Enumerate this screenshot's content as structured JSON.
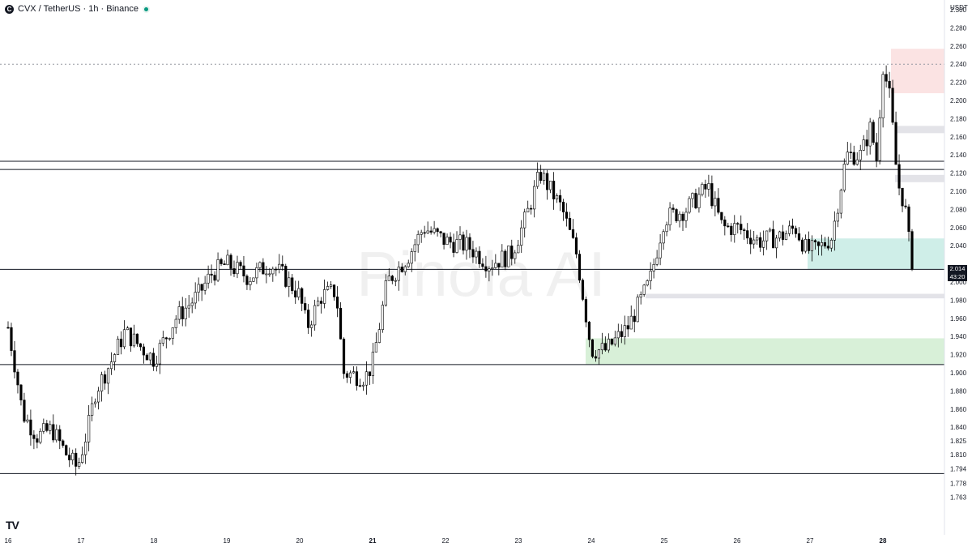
{
  "header": {
    "symbol_icon": "C",
    "title": "CVX / TetherUS · 1h · Binance",
    "status": "market-open-dot"
  },
  "axis": {
    "unit": "USDT",
    "price_ticks": [
      "2.300",
      "2.280",
      "2.260",
      "2.240",
      "2.220",
      "2.200",
      "2.180",
      "2.160",
      "2.140",
      "2.120",
      "2.100",
      "2.080",
      "2.060",
      "2.040",
      "2.020",
      "2.000",
      "1.980",
      "1.960",
      "1.940",
      "1.920",
      "1.900",
      "1.880",
      "1.860",
      "1.840",
      "1.825",
      "1.810",
      "1.794",
      "1.778",
      "1.763"
    ],
    "date_ticks": [
      "16",
      "17",
      "18",
      "19",
      "20",
      "21",
      "22",
      "23",
      "24",
      "25",
      "26",
      "27",
      "28"
    ]
  },
  "price_tag": {
    "price": "2.014",
    "countdown": "43:20"
  },
  "watermark": "Pinola AI",
  "logo": "TV",
  "colors": {
    "up_candle": "#ffffff",
    "down_candle": "#000000",
    "supply_zone": "#fbe3e3",
    "demand_zone_teal": "#cfeee8",
    "demand_zone_green": "#d8f0d8",
    "minor_zone": "#e3e3e8",
    "level_line": "#131722"
  },
  "chart_data": {
    "type": "candlestick",
    "title": "CVX / TetherUS · 1h · Binance",
    "ylabel": "USDT",
    "ylim": [
      1.763,
      2.3
    ],
    "x_categories": [
      "16",
      "17",
      "18",
      "19",
      "20",
      "21",
      "22",
      "23",
      "24",
      "25",
      "26",
      "27",
      "28"
    ],
    "last_price": 2.014,
    "candle_close_path": [
      {
        "day": 16.0,
        "close": 1.95
      },
      {
        "day": 16.1,
        "close": 1.905
      },
      {
        "day": 16.2,
        "close": 1.855
      },
      {
        "day": 16.4,
        "close": 1.83
      },
      {
        "day": 16.6,
        "close": 1.838
      },
      {
        "day": 16.8,
        "close": 1.81
      },
      {
        "day": 16.95,
        "close": 1.795
      },
      {
        "day": 17.1,
        "close": 1.84
      },
      {
        "day": 17.2,
        "close": 1.88
      },
      {
        "day": 17.4,
        "close": 1.91
      },
      {
        "day": 17.6,
        "close": 1.945
      },
      {
        "day": 17.8,
        "close": 1.93
      },
      {
        "day": 18.0,
        "close": 1.915
      },
      {
        "day": 18.3,
        "close": 1.96
      },
      {
        "day": 18.6,
        "close": 1.985
      },
      {
        "day": 18.8,
        "close": 2.01
      },
      {
        "day": 19.0,
        "close": 2.02
      },
      {
        "day": 19.3,
        "close": 2.005
      },
      {
        "day": 19.6,
        "close": 2.02
      },
      {
        "day": 19.8,
        "close": 2.005
      },
      {
        "day": 20.0,
        "close": 1.985
      },
      {
        "day": 20.1,
        "close": 1.95
      },
      {
        "day": 20.3,
        "close": 1.985
      },
      {
        "day": 20.5,
        "close": 1.99
      },
      {
        "day": 20.6,
        "close": 1.9
      },
      {
        "day": 20.9,
        "close": 1.895
      },
      {
        "day": 21.0,
        "close": 1.91
      },
      {
        "day": 21.2,
        "close": 2.0
      },
      {
        "day": 21.5,
        "close": 2.03
      },
      {
        "day": 21.7,
        "close": 2.06
      },
      {
        "day": 22.0,
        "close": 2.045
      },
      {
        "day": 22.3,
        "close": 2.04
      },
      {
        "day": 22.6,
        "close": 2.02
      },
      {
        "day": 22.9,
        "close": 2.03
      },
      {
        "day": 23.1,
        "close": 2.07
      },
      {
        "day": 23.3,
        "close": 2.12
      },
      {
        "day": 23.6,
        "close": 2.08
      },
      {
        "day": 23.8,
        "close": 2.03
      },
      {
        "day": 24.0,
        "close": 1.925
      },
      {
        "day": 24.2,
        "close": 1.925
      },
      {
        "day": 24.5,
        "close": 1.95
      },
      {
        "day": 24.8,
        "close": 2.0
      },
      {
        "day": 25.0,
        "close": 2.07
      },
      {
        "day": 25.3,
        "close": 2.08
      },
      {
        "day": 25.6,
        "close": 2.105
      },
      {
        "day": 25.8,
        "close": 2.06
      },
      {
        "day": 26.0,
        "close": 2.06
      },
      {
        "day": 26.3,
        "close": 2.045
      },
      {
        "day": 26.6,
        "close": 2.05
      },
      {
        "day": 26.8,
        "close": 2.06
      },
      {
        "day": 26.95,
        "close": 2.035
      },
      {
        "day": 27.1,
        "close": 2.035
      },
      {
        "day": 27.3,
        "close": 2.05
      },
      {
        "day": 27.5,
        "close": 2.14
      },
      {
        "day": 27.7,
        "close": 2.14
      },
      {
        "day": 27.85,
        "close": 2.175
      },
      {
        "day": 27.9,
        "close": 2.12
      },
      {
        "day": 28.0,
        "close": 2.24
      },
      {
        "day": 28.1,
        "close": 2.2
      },
      {
        "day": 28.2,
        "close": 2.11
      },
      {
        "day": 28.3,
        "close": 2.085
      },
      {
        "day": 28.4,
        "close": 2.014
      }
    ],
    "horizontal_levels": [
      2.24,
      2.133,
      2.124,
      2.014,
      1.909,
      1.789
    ],
    "zones": [
      {
        "label": "supply",
        "from": 2.208,
        "to": 2.257
      },
      {
        "label": "minor",
        "from": 2.164,
        "to": 2.172
      },
      {
        "label": "minor",
        "from": 2.11,
        "to": 2.118
      },
      {
        "label": "demand",
        "from": 2.014,
        "to": 2.048
      },
      {
        "label": "minor",
        "from": 1.982,
        "to": 1.987
      },
      {
        "label": "demand",
        "from": 1.909,
        "to": 1.938
      }
    ]
  }
}
